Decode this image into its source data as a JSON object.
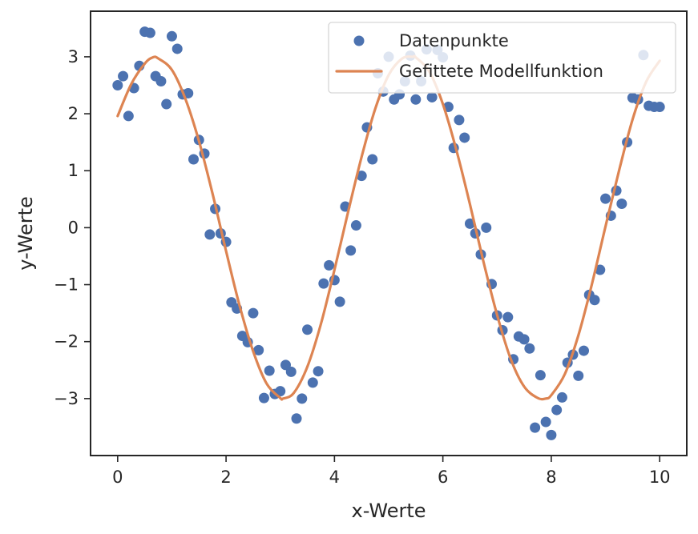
{
  "chart_data": {
    "type": "scatter",
    "xlabel": "x-Werte",
    "ylabel": "y-Werte",
    "xlim": [
      -0.5,
      10.5
    ],
    "ylim": [
      -4.0,
      3.8
    ],
    "xticks": [
      0,
      2,
      4,
      6,
      8,
      10
    ],
    "yticks": [
      -3,
      -2,
      -1,
      0,
      1,
      2,
      3
    ],
    "ytick_labels": [
      "−3",
      "−2",
      "−1",
      "0",
      "1",
      "2",
      "3"
    ],
    "grid": false,
    "legend_position": "top-right",
    "colors": {
      "scatter": "#4c72b0",
      "fit": "#dd8452",
      "axes": "#262626"
    },
    "series": [
      {
        "name": "Datenpunkte",
        "kind": "scatter",
        "x": [
          0.0,
          0.1,
          0.2,
          0.3,
          0.4,
          0.5,
          0.6,
          0.7,
          0.8,
          0.9,
          1.0,
          1.1,
          1.2,
          1.3,
          1.4,
          1.5,
          1.6,
          1.7,
          1.8,
          1.9,
          2.0,
          2.1,
          2.2,
          2.3,
          2.4,
          2.5,
          2.6,
          2.7,
          2.8,
          2.9,
          3.0,
          3.1,
          3.2,
          3.3,
          3.4,
          3.5,
          3.6,
          3.7,
          3.8,
          3.9,
          4.0,
          4.1,
          4.2,
          4.3,
          4.4,
          4.5,
          4.6,
          4.7,
          4.8,
          4.9,
          5.0,
          5.1,
          5.2,
          5.3,
          5.4,
          5.5,
          5.6,
          5.7,
          5.8,
          5.9,
          6.0,
          6.1,
          6.2,
          6.3,
          6.4,
          6.5,
          6.6,
          6.7,
          6.8,
          6.9,
          7.0,
          7.1,
          7.2,
          7.3,
          7.4,
          7.5,
          7.6,
          7.7,
          7.8,
          7.9,
          8.0,
          8.1,
          8.2,
          8.3,
          8.4,
          8.5,
          8.6,
          8.7,
          8.8,
          8.9,
          9.0,
          9.1,
          9.2,
          9.3,
          9.4,
          9.5,
          9.6,
          9.7,
          9.8,
          9.9,
          10.0
        ],
        "y": [
          2.5,
          2.66,
          1.96,
          2.45,
          2.84,
          3.44,
          3.42,
          2.66,
          2.57,
          2.17,
          3.36,
          3.14,
          2.34,
          2.36,
          1.2,
          1.54,
          1.3,
          -0.12,
          0.33,
          -0.1,
          -0.25,
          -1.31,
          -1.42,
          -1.9,
          -2.01,
          -1.5,
          -2.15,
          -2.99,
          -2.51,
          -2.92,
          -2.87,
          -2.41,
          -2.53,
          -3.35,
          -3.0,
          -1.79,
          -2.72,
          -2.52,
          -0.98,
          -0.66,
          -0.92,
          -1.3,
          0.37,
          -0.4,
          0.04,
          0.91,
          1.76,
          1.2,
          2.71,
          2.39,
          3.0,
          2.25,
          2.34,
          2.57,
          3.02,
          2.25,
          2.57,
          3.13,
          2.29,
          3.12,
          2.99,
          2.12,
          1.4,
          1.89,
          1.58,
          0.07,
          -0.1,
          -0.47,
          0.0,
          -0.99,
          -1.54,
          -1.8,
          -1.57,
          -2.31,
          -1.91,
          -1.96,
          -2.12,
          -3.51,
          -2.59,
          -3.41,
          -3.64,
          -3.2,
          -2.98,
          -2.37,
          -2.23,
          -2.6,
          -2.16,
          -1.18,
          -1.27,
          -0.74,
          0.51,
          0.21,
          0.65,
          0.42,
          1.5,
          2.28,
          2.25,
          3.03,
          2.14,
          2.12,
          2.12
        ]
      },
      {
        "name": "Gefittete Modellfunktion",
        "kind": "line",
        "x": [
          0.0,
          0.25,
          0.5,
          0.65,
          0.75,
          1.0,
          1.25,
          1.5,
          1.75,
          2.0,
          2.25,
          2.5,
          2.75,
          3.0,
          3.05,
          3.25,
          3.5,
          3.75,
          4.0,
          4.25,
          4.5,
          4.75,
          5.0,
          5.25,
          5.45,
          5.5,
          5.75,
          6.0,
          6.25,
          6.5,
          6.75,
          7.0,
          7.25,
          7.5,
          7.75,
          7.9,
          8.0,
          8.25,
          8.5,
          8.75,
          9.0,
          9.25,
          9.5,
          9.75,
          10.0
        ],
        "y": [
          1.96,
          2.52,
          2.88,
          2.99,
          2.97,
          2.77,
          2.26,
          1.52,
          0.6,
          -0.41,
          -1.37,
          -2.17,
          -2.74,
          -2.99,
          -3.0,
          -2.9,
          -2.44,
          -1.69,
          -0.74,
          0.27,
          1.24,
          2.08,
          2.68,
          2.97,
          3.0,
          2.99,
          2.74,
          2.17,
          1.36,
          0.41,
          -0.6,
          -1.53,
          -2.3,
          -2.79,
          -2.99,
          -3.0,
          -2.94,
          -2.57,
          -1.89,
          -0.99,
          0.02,
          1.0,
          1.9,
          2.56,
          2.93
        ]
      }
    ]
  }
}
